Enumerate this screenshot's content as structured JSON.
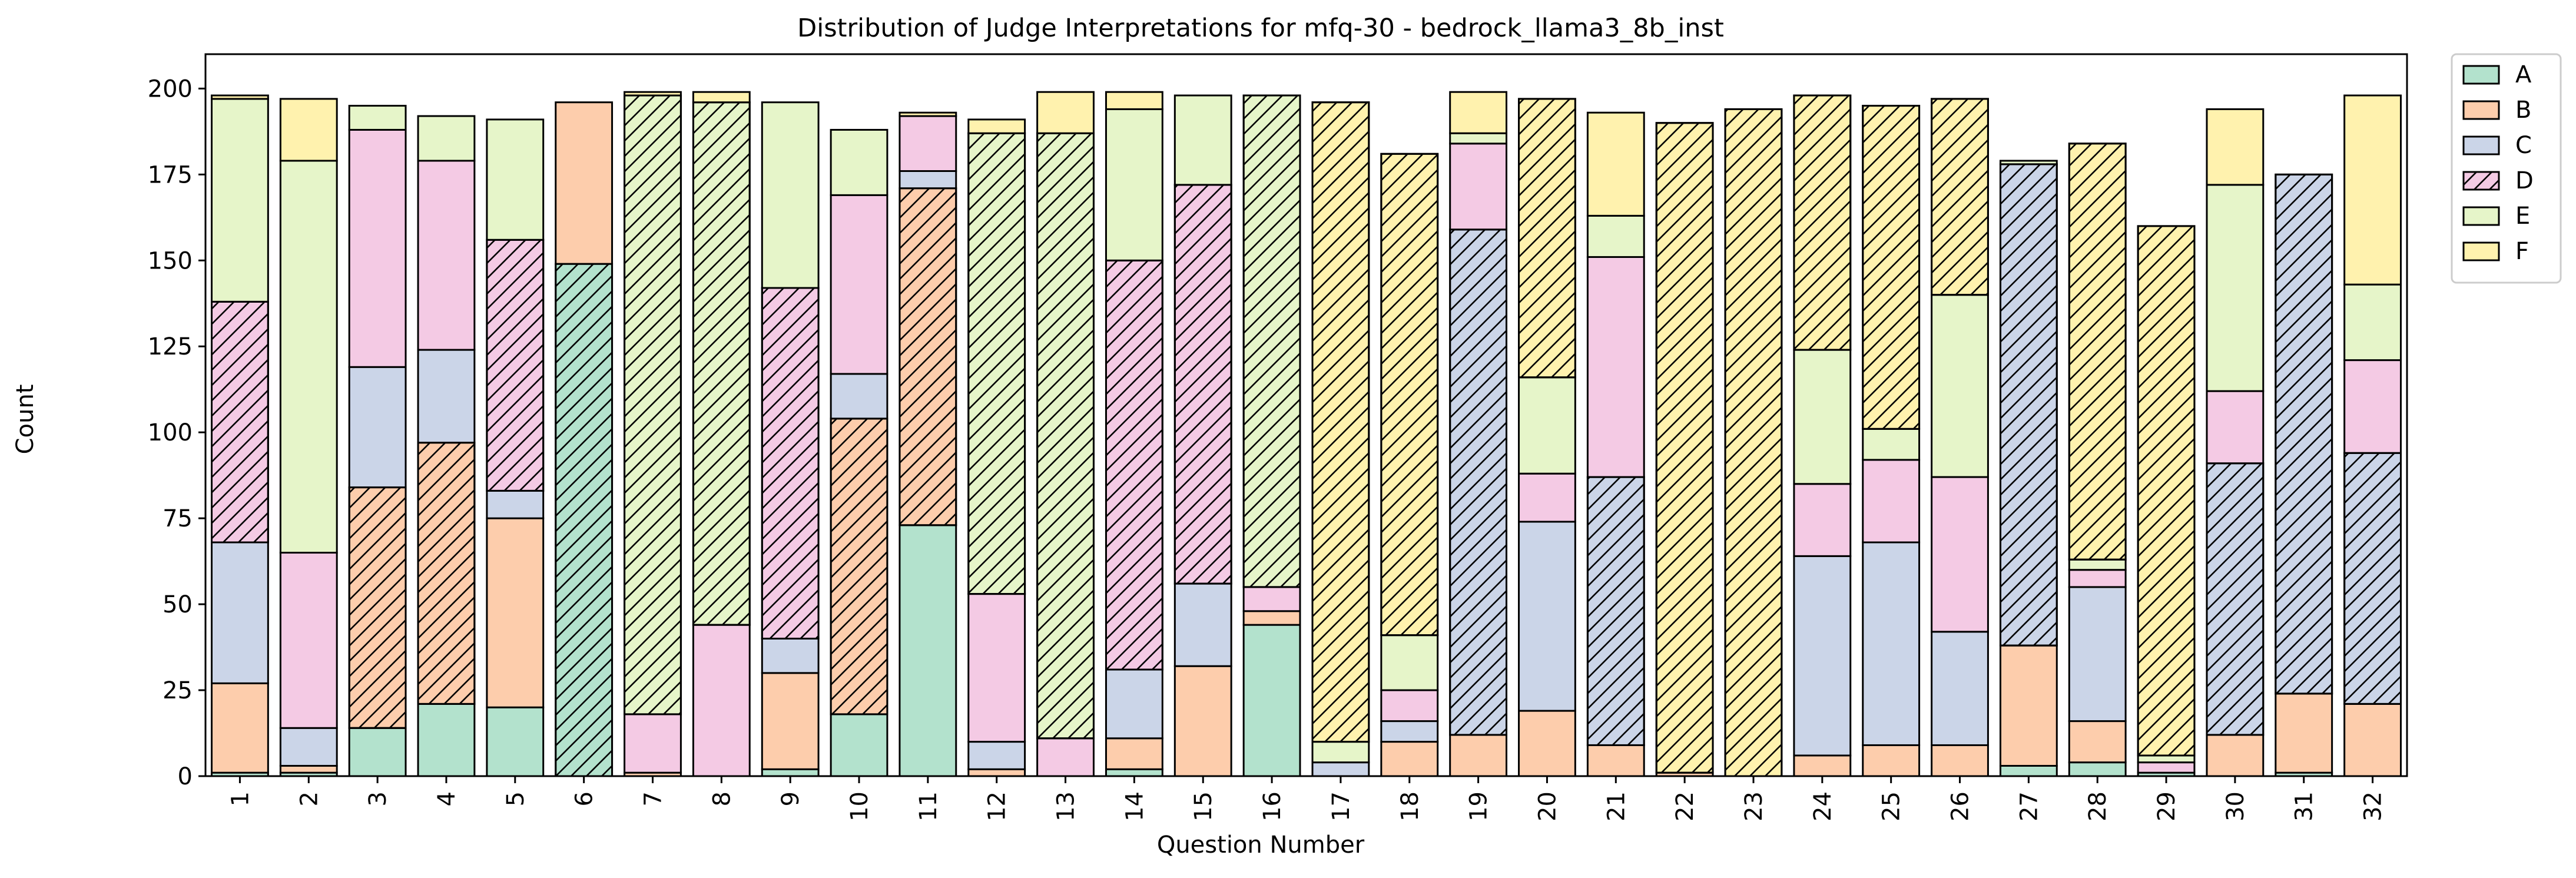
{
  "chart_data": {
    "type": "bar",
    "stacked": true,
    "title": "Distribution of Judge Interpretations for mfq-30 - bedrock_llama3_8b_inst",
    "xlabel": "Question Number",
    "ylabel": "Count",
    "ylim": [
      0,
      210
    ],
    "yticks": [
      0,
      25,
      50,
      75,
      100,
      125,
      150,
      175,
      200
    ],
    "grid": false,
    "legend_position": "outside-top-right",
    "categories": [
      "1",
      "2",
      "3",
      "4",
      "5",
      "6",
      "7",
      "8",
      "9",
      "10",
      "11",
      "12",
      "13",
      "14",
      "15",
      "16",
      "17",
      "18",
      "19",
      "20",
      "21",
      "22",
      "23",
      "24",
      "25",
      "26",
      "27",
      "28",
      "29",
      "30",
      "31",
      "32"
    ],
    "series": [
      {
        "name": "A",
        "color": "#b3e2cd",
        "values": [
          1,
          1,
          14,
          21,
          20,
          149,
          0,
          0,
          2,
          18,
          73,
          0,
          0,
          2,
          0,
          44,
          0,
          0,
          0,
          0,
          0,
          0,
          0,
          0,
          0,
          0,
          3,
          4,
          1,
          0,
          1,
          0
        ]
      },
      {
        "name": "B",
        "color": "#fdcdac",
        "values": [
          26,
          2,
          70,
          76,
          55,
          47,
          1,
          0,
          28,
          86,
          98,
          2,
          0,
          9,
          32,
          4,
          0,
          10,
          12,
          19,
          9,
          1,
          0,
          6,
          9,
          9,
          35,
          12,
          0,
          12,
          23,
          21
        ]
      },
      {
        "name": "C",
        "color": "#cbd5e8",
        "values": [
          41,
          11,
          35,
          27,
          8,
          0,
          0,
          0,
          10,
          13,
          5,
          8,
          0,
          20,
          24,
          0,
          4,
          6,
          147,
          55,
          78,
          0,
          0,
          58,
          59,
          33,
          140,
          39,
          0,
          79,
          151,
          73
        ]
      },
      {
        "name": "D",
        "color": "#f4cae4",
        "values": [
          70,
          51,
          69,
          55,
          73,
          0,
          17,
          44,
          102,
          52,
          16,
          43,
          11,
          119,
          116,
          7,
          0,
          9,
          25,
          14,
          64,
          0,
          0,
          21,
          24,
          45,
          0,
          5,
          3,
          21,
          0,
          27
        ]
      },
      {
        "name": "E",
        "color": "#e6f5c9",
        "values": [
          59,
          114,
          7,
          13,
          35,
          0,
          180,
          152,
          54,
          19,
          0,
          134,
          176,
          44,
          26,
          143,
          6,
          16,
          3,
          28,
          12,
          0,
          0,
          39,
          9,
          53,
          1,
          3,
          2,
          60,
          0,
          22
        ]
      },
      {
        "name": "F",
        "color": "#fff2ae",
        "values": [
          1,
          18,
          0,
          0,
          0,
          0,
          1,
          3,
          0,
          0,
          1,
          4,
          12,
          5,
          0,
          0,
          186,
          140,
          12,
          81,
          30,
          189,
          194,
          74,
          94,
          57,
          0,
          121,
          154,
          22,
          0,
          55
        ]
      }
    ],
    "hatch_map": [
      [
        "D",
        "",
        "B",
        "B",
        "D",
        "A",
        "E",
        "E",
        "D",
        "B",
        "B",
        "E",
        "E",
        "D",
        "D",
        "E",
        "F",
        "F",
        "C",
        "F",
        "C",
        "F",
        "F",
        "F",
        "F",
        "F",
        "C",
        "F",
        "F",
        "C",
        "C",
        "C"
      ]
    ]
  }
}
